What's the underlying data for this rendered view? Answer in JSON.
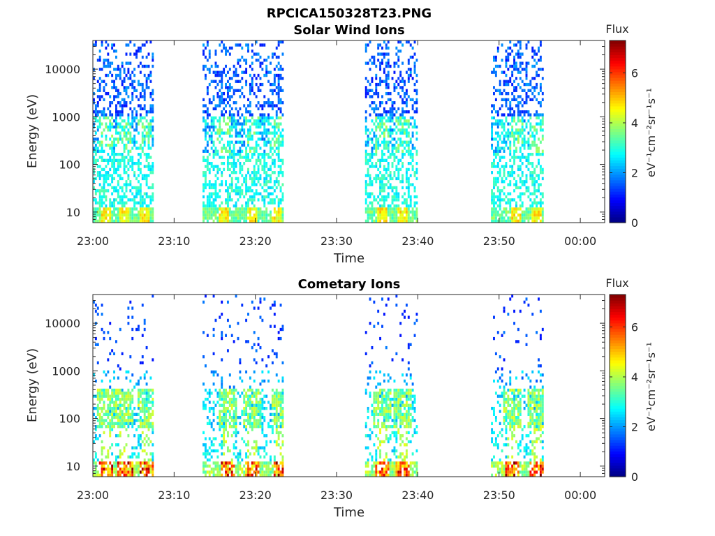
{
  "figure_title": "RPCICA150328T23.PNG",
  "chart_data": [
    {
      "type": "heatmap",
      "title": "Solar Wind Ions",
      "xlabel": "Time",
      "ylabel": "Energy (eV)",
      "yscale": "log",
      "ylim": [
        6,
        40000
      ],
      "xlim": [
        "23:00",
        "00:03"
      ],
      "xticks": [
        "23:00",
        "23:10",
        "23:20",
        "23:30",
        "23:40",
        "23:50",
        "00:00"
      ],
      "yticks": [
        "10",
        "100",
        "1000",
        "10000"
      ],
      "colorbar": {
        "title": "Flux",
        "label": "eV⁻¹cm⁻²sr⁻¹s⁻¹",
        "range": [
          0,
          7.3
        ],
        "ticks": [
          "0",
          "2",
          "4",
          "6"
        ],
        "colormap": "jet"
      },
      "data_intervals_min": [
        [
          0,
          7.5
        ],
        [
          13.5,
          23.5
        ],
        [
          33.5,
          40
        ],
        [
          49,
          55.5
        ]
      ],
      "sweep_peak_energies_eV": [
        [
          1.5,
          2500
        ],
        [
          3.8,
          2500
        ],
        [
          6.2,
          700
        ],
        [
          16,
          2500
        ],
        [
          19.5,
          2500
        ],
        [
          22.5,
          700
        ],
        [
          35.5,
          600
        ],
        [
          38,
          2000
        ],
        [
          52,
          800
        ],
        [
          54.5,
          800
        ]
      ],
      "flux_summary": "blue 1-5 (flux 1-2) above ~1 keV, cyan-green (flux 2.5-3.5) below ~300 eV, yellow (~4.5) near 8 eV"
    },
    {
      "type": "heatmap",
      "title": "Cometary Ions",
      "xlabel": "Time",
      "ylabel": "Energy (eV)",
      "yscale": "log",
      "ylim": [
        6,
        40000
      ],
      "xlim": [
        "23:00",
        "00:03"
      ],
      "xticks": [
        "23:00",
        "23:10",
        "23:20",
        "23:30",
        "23:40",
        "23:50",
        "00:00"
      ],
      "yticks": [
        "10",
        "100",
        "1000",
        "10000"
      ],
      "colorbar": {
        "title": "Flux",
        "label": "eV⁻¹cm⁻²sr⁻¹s⁻¹",
        "range": [
          0,
          7.3
        ],
        "ticks": [
          "0",
          "2",
          "4",
          "6"
        ],
        "colormap": "jet"
      },
      "data_intervals_min": [
        [
          0,
          7.5
        ],
        [
          13.5,
          23.5
        ],
        [
          33.5,
          40
        ],
        [
          49,
          55.5
        ]
      ],
      "sweep_peak_energies_eV": [
        [
          1.5,
          250
        ],
        [
          3.8,
          220
        ],
        [
          6.5,
          220
        ],
        [
          16.5,
          200
        ],
        [
          19.5,
          200
        ],
        [
          23,
          200
        ],
        [
          35.5,
          180
        ],
        [
          38,
          120
        ],
        [
          51.5,
          200
        ],
        [
          54.5,
          200
        ]
      ],
      "flux_summary": "sparse blue (flux 1-2) above ~1 keV, green-yellow (3-4.5) at 100-400 eV, orange-red (5.5-7) near 7-8 eV"
    }
  ]
}
